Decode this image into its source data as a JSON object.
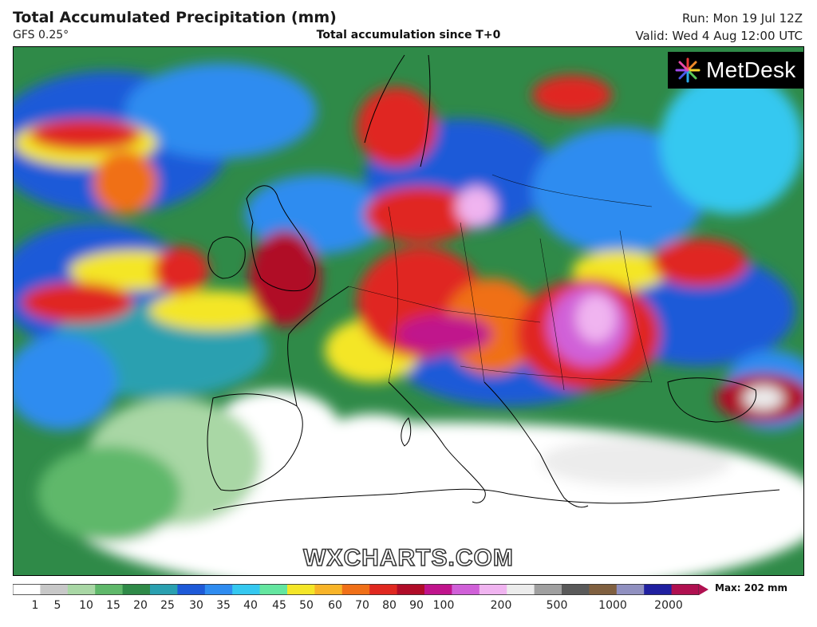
{
  "header": {
    "title": "Total Accumulated Precipitation (mm)",
    "model": "GFS 0.25°",
    "subtitle": "Total accumulation since T+0",
    "run": "Run: Mon 19 Jul 12Z",
    "valid": "Valid: Wed 4 Aug 12:00 UTC"
  },
  "logo": {
    "text": "MetDesk",
    "icon": "starburst-logo-icon"
  },
  "watermark": "WXCHARTS.COM",
  "legend": {
    "max_label": "Max: 202 mm",
    "ticks": [
      "1",
      "5",
      "10",
      "15",
      "20",
      "25",
      "30",
      "35",
      "40",
      "45",
      "50",
      "60",
      "70",
      "80",
      "90",
      "100",
      "200",
      "500",
      "1000",
      "2000"
    ],
    "colors": [
      "#ffffff",
      "#c8c8c8",
      "#a9d7a5",
      "#5fb86a",
      "#2f8a48",
      "#2aa0b0",
      "#1e5ad8",
      "#2f8cf0",
      "#35c8f0",
      "#64e6a0",
      "#f4e628",
      "#f8b428",
      "#f07018",
      "#e02820",
      "#b00c28",
      "#c0148c",
      "#d060d8",
      "#f0b4f0",
      "#ececec",
      "#a0a0a0",
      "#5a5a5a",
      "#806040",
      "#9090c0",
      "#2020a0",
      "#b01050"
    ]
  }
}
